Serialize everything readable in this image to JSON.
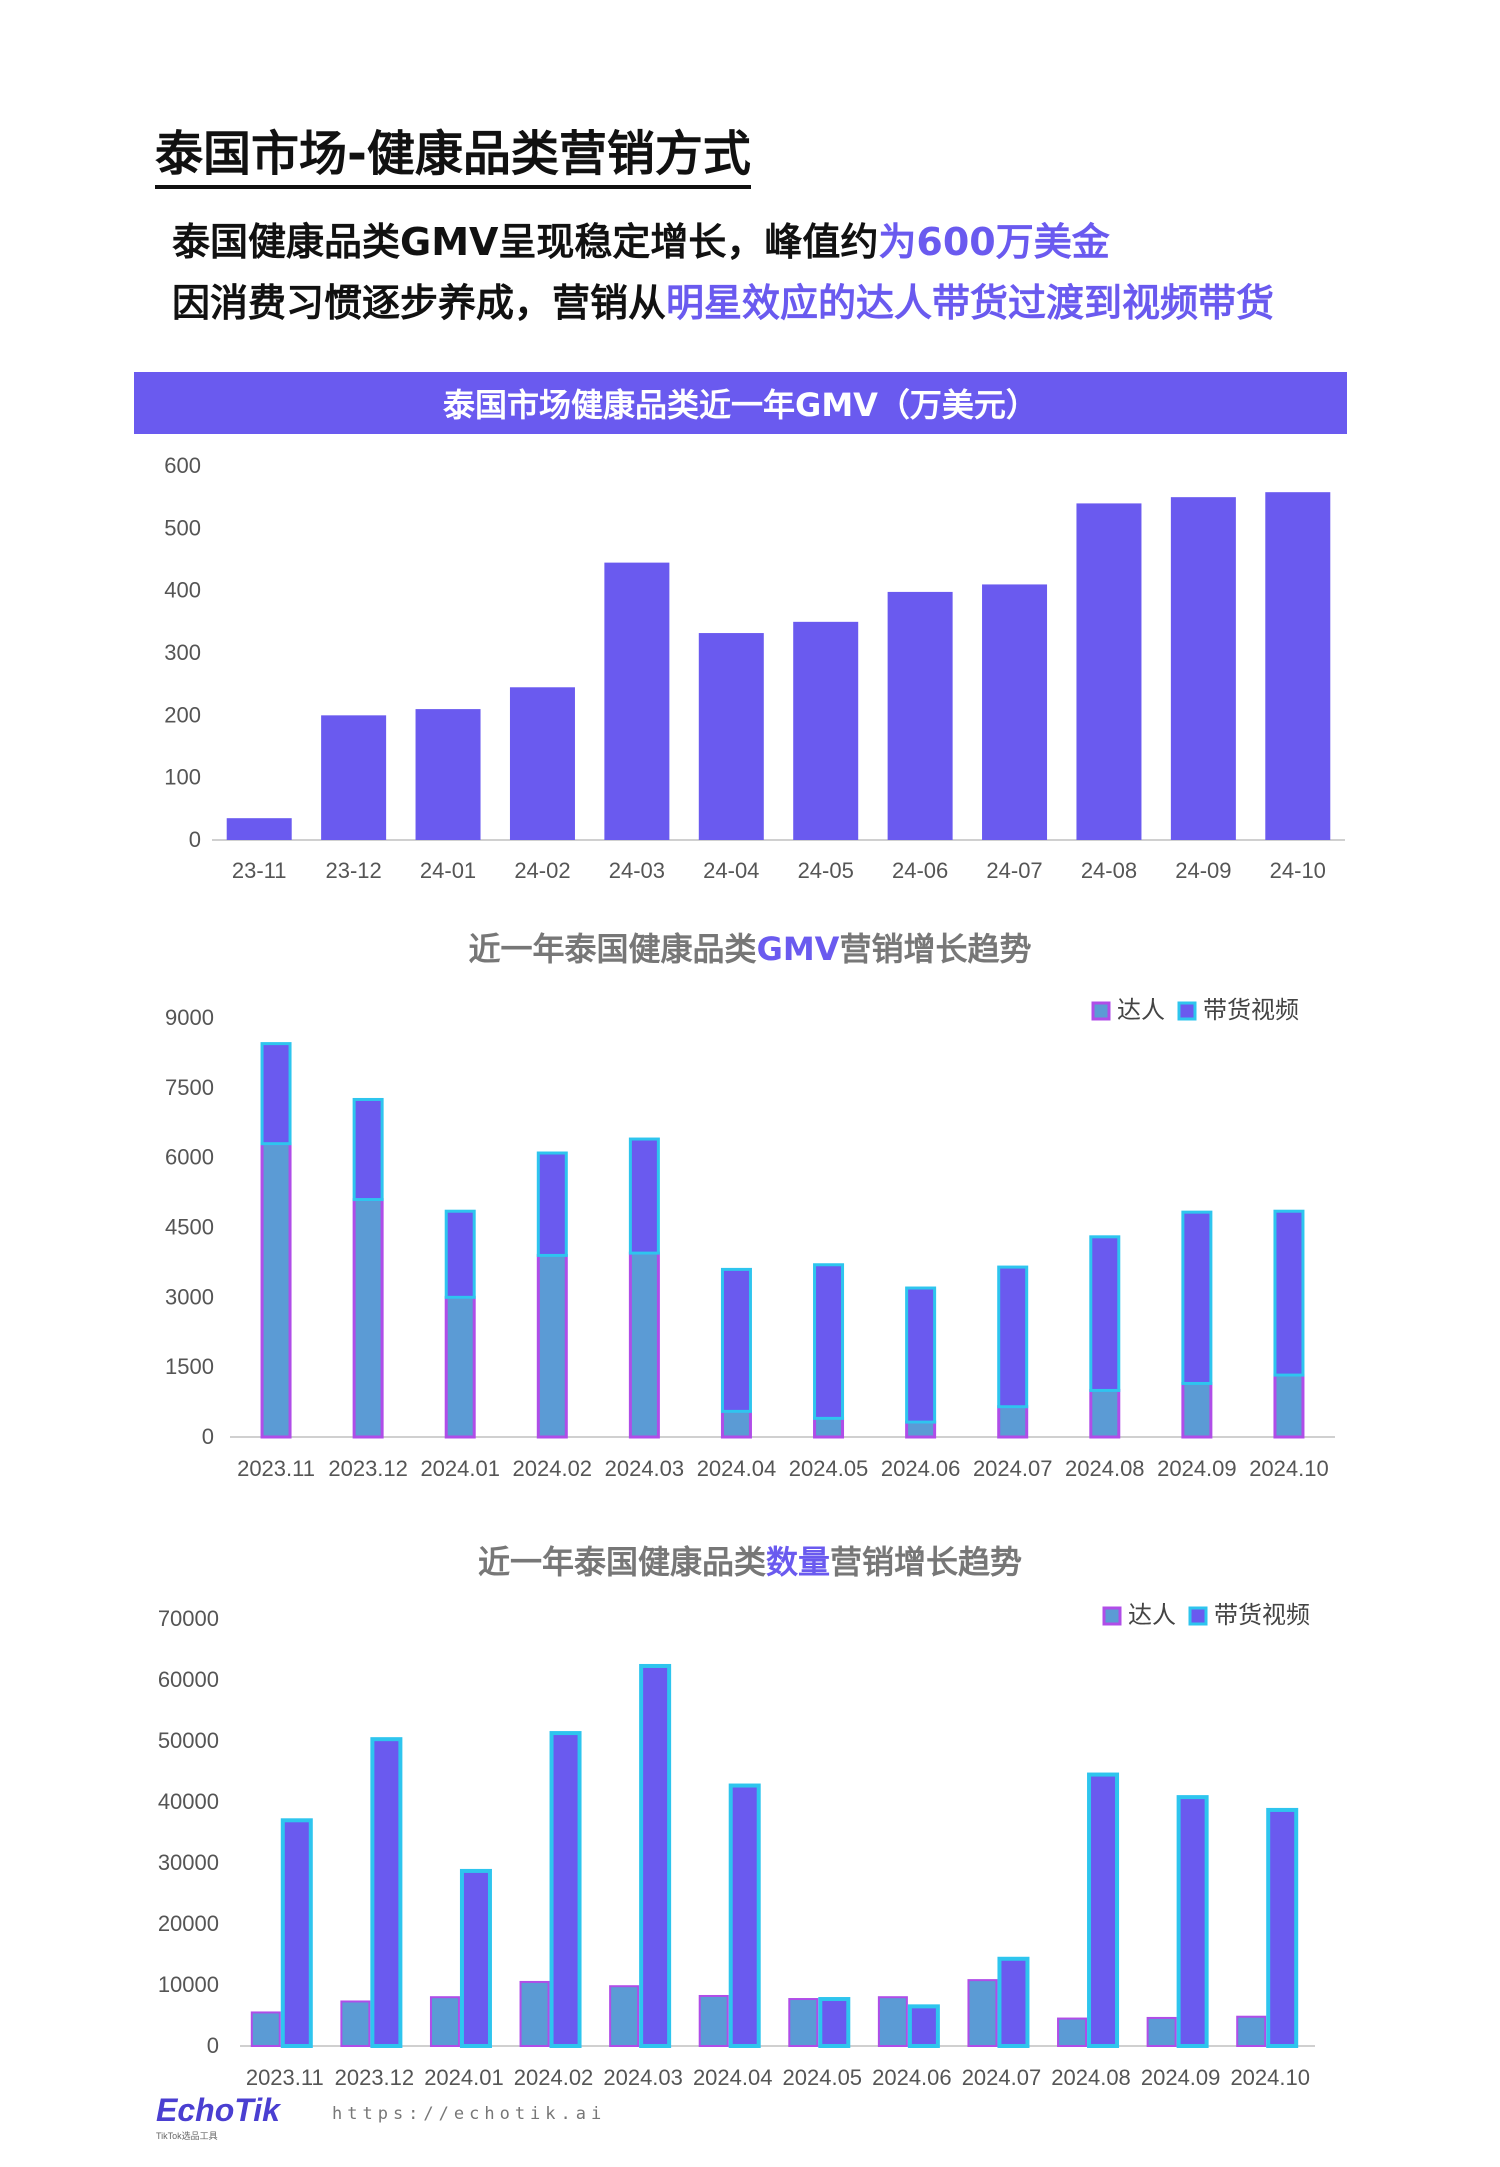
{
  "page_title": "泰国市场-健康品类营销方式",
  "subtitle_1": {
    "text": "泰国健康品类GMV呈现稳定增长，峰值约",
    "highlight": "为600万美金"
  },
  "subtitle_2": {
    "text": "因消费习惯逐步养成，营销从",
    "highlight": "明星效应的达人带货过渡到视频带货"
  },
  "colors": {
    "accent": "#6a5aef",
    "kol": "#5b9bd5",
    "kol_border": "#b04de8",
    "video": "#6a5aef",
    "video_border": "#2ec5ee"
  },
  "legend": {
    "kol": "达人",
    "video": "带货视频"
  },
  "chart1_banner": "泰国市场健康品类近一年GMV（万美元）",
  "chart2_title": {
    "pre": "近一年泰国健康品类",
    "hl": "GMV",
    "post": "营销增长趋势"
  },
  "chart3_title": {
    "pre": "近一年泰国健康品类",
    "hl": "数量",
    "post": "营销增长趋势"
  },
  "chart_data": [
    {
      "type": "bar",
      "title": "泰国市场健康品类近一年GMV（万美元）",
      "categories": [
        "23-11",
        "23-12",
        "24-01",
        "24-02",
        "24-03",
        "24-04",
        "24-05",
        "24-06",
        "24-07",
        "24-08",
        "24-09",
        "24-10"
      ],
      "values": [
        35,
        200,
        210,
        245,
        445,
        332,
        350,
        398,
        410,
        540,
        550,
        558
      ],
      "ylim": [
        0,
        600
      ],
      "yticks": [
        "0",
        "100",
        "200",
        "300",
        "400",
        "500",
        "600"
      ],
      "grid": false
    },
    {
      "type": "bar",
      "stacked": true,
      "title": "近一年泰国健康品类GMV营销增长趋势",
      "categories": [
        "2023.11",
        "2023.12",
        "2024.01",
        "2024.02",
        "2024.03",
        "2024.04",
        "2024.05",
        "2024.06",
        "2024.07",
        "2024.08",
        "2024.09",
        "2024.10"
      ],
      "series": [
        {
          "name": "达人",
          "values": [
            6300,
            5100,
            3000,
            3900,
            3950,
            550,
            400,
            320,
            650,
            1000,
            1150,
            1330
          ]
        },
        {
          "name": "带货视频",
          "values": [
            2150,
            2150,
            1850,
            2200,
            2450,
            3050,
            3300,
            2880,
            3000,
            3300,
            3680,
            3520
          ]
        }
      ],
      "ylim": [
        0,
        9000
      ],
      "yticks": [
        "0",
        "1500",
        "3000",
        "4500",
        "6000",
        "7500",
        "9000"
      ],
      "legend": "top-right"
    },
    {
      "type": "bar",
      "title": "近一年泰国健康品类数量营销增长趋势",
      "categories": [
        "2023.11",
        "2023.12",
        "2024.01",
        "2024.02",
        "2024.03",
        "2024.04",
        "2024.05",
        "2024.06",
        "2024.07",
        "2024.08",
        "2024.09",
        "2024.10"
      ],
      "series": [
        {
          "name": "达人",
          "values": [
            5500,
            7300,
            8000,
            10500,
            9800,
            8200,
            7700,
            8000,
            10800,
            4500,
            4600,
            4800
          ]
        },
        {
          "name": "带货视频",
          "values": [
            37000,
            50300,
            28700,
            51300,
            62300,
            42700,
            7700,
            6500,
            14300,
            44500,
            40800,
            38700
          ]
        }
      ],
      "ylim": [
        0,
        70000
      ],
      "yticks": [
        "0",
        "10000",
        "20000",
        "30000",
        "40000",
        "50000",
        "60000",
        "70000"
      ],
      "legend": "top-right"
    }
  ],
  "footer": {
    "logo": "EchoTik",
    "logo_sub": "TikTok选品工具",
    "url": "https://echotik.ai"
  }
}
